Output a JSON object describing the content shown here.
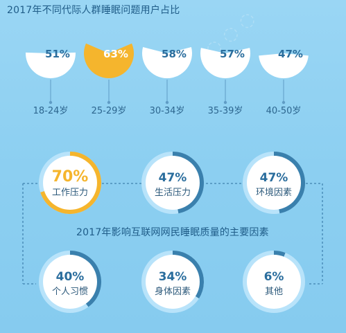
{
  "title": "2017年不同代际人群睡眠问题用户占比",
  "middle_title": "2017年影响互联网网民睡眠质量的主要因素",
  "colors": {
    "background": "#8fd0f2",
    "white": "#ffffff",
    "highlight": "#f5b52d",
    "blue_text": "#2a6d9d",
    "dark_blue": "#3a80ad",
    "light_track": "#b8e3fa",
    "axis_line": "#5f9cc5",
    "dashed_line": "#4b8db9"
  },
  "icons": {
    "watermark": "watermark-icon"
  },
  "chart_data": [
    {
      "type": "pie",
      "title": "2017年不同代际人群睡眠问题用户占比",
      "categories": [
        "18-24岁",
        "25-29岁",
        "30-34岁",
        "35-39岁",
        "40-50岁"
      ],
      "values": [
        51,
        63,
        58,
        57,
        47
      ],
      "labels": [
        "51%",
        "63%",
        "58%",
        "57%",
        "47%"
      ],
      "highlight_index": 1
    },
    {
      "type": "pie",
      "title": "2017年影响互联网网民睡眠质量的主要因素",
      "categories": [
        "工作压力",
        "生活压力",
        "环境因素",
        "个人习惯",
        "身体因素",
        "其他"
      ],
      "values": [
        70,
        47,
        47,
        40,
        34,
        6
      ],
      "labels": [
        "70%",
        "47%",
        "47%",
        "40%",
        "34%",
        "6%"
      ],
      "highlight_index": 0
    }
  ]
}
